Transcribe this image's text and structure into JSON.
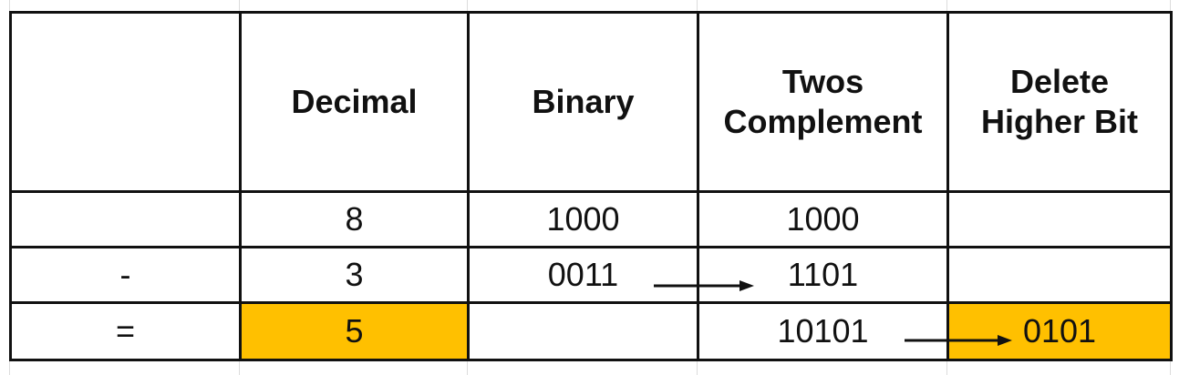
{
  "table": {
    "headers": [
      "",
      "Decimal",
      "Binary",
      "Twos\nComplement",
      "Delete\nHigher Bit"
    ],
    "header_lines": {
      "twos": [
        "Twos",
        "Complement"
      ],
      "delete": [
        "Delete",
        "Higher Bit"
      ]
    },
    "rows": [
      {
        "op": "",
        "decimal": "8",
        "binary": "1000",
        "twos": "1000",
        "delete": ""
      },
      {
        "op": "-",
        "decimal": "3",
        "binary": "0011",
        "twos": "1101",
        "delete": ""
      },
      {
        "op": "=",
        "decimal": "5",
        "binary": "",
        "twos": "10101",
        "delete": "0101"
      }
    ]
  },
  "colors": {
    "highlight": "#ffc000",
    "border": "#111111",
    "gridline": "#dcdcdc"
  },
  "icons": [
    "arrow-right-icon",
    "arrow-right-icon"
  ]
}
